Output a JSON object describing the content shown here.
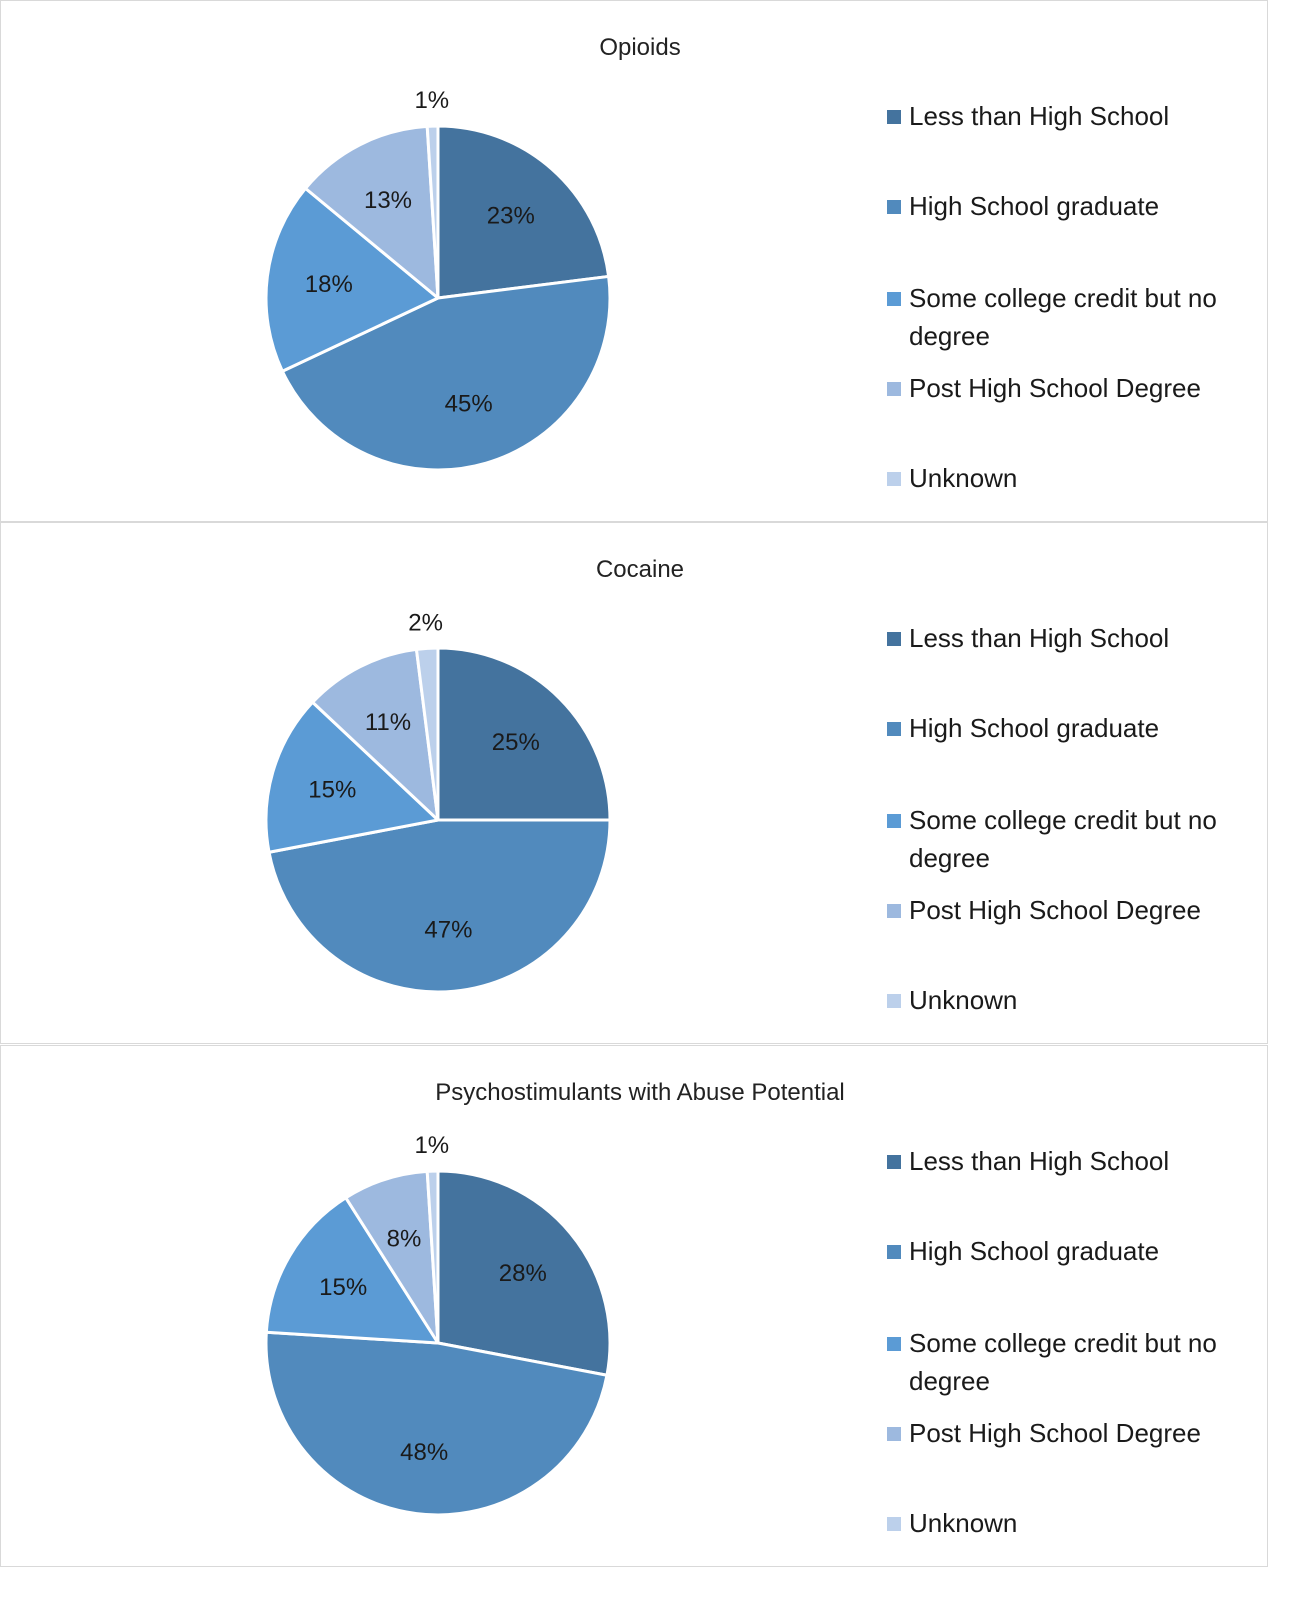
{
  "legend_labels": [
    "Less than High School",
    "High School graduate",
    "Some college credit but no degree",
    "Post High School Degree",
    "Unknown"
  ],
  "colors": [
    "#44739e",
    "#518abd",
    "#5b9bd5",
    "#9db9df",
    "#bcd0eb"
  ],
  "chart_data": [
    {
      "type": "pie",
      "title": "Opioids",
      "categories": [
        "Less than High School",
        "High School graduate",
        "Some college credit but no degree",
        "Post High School Degree",
        "Unknown"
      ],
      "values": [
        23,
        45,
        18,
        13,
        1
      ],
      "labels": [
        "23%",
        "45%",
        "18%",
        "13%",
        "1%"
      ],
      "legend": "right"
    },
    {
      "type": "pie",
      "title": "Cocaine",
      "categories": [
        "Less than High School",
        "High School graduate",
        "Some college credit but no degree",
        "Post High School Degree",
        "Unknown"
      ],
      "values": [
        25,
        47,
        15,
        11,
        2
      ],
      "labels": [
        "25%",
        "47%",
        "15%",
        "11%",
        "2%"
      ],
      "legend": "right"
    },
    {
      "type": "pie",
      "title": "Psychostimulants with Abuse Potential",
      "categories": [
        "Less than High School",
        "High School graduate",
        "Some college credit but no degree",
        "Post High School Degree",
        "Unknown"
      ],
      "values": [
        28,
        48,
        15,
        8,
        1
      ],
      "labels": [
        "28%",
        "48%",
        "15%",
        "8%",
        "1%"
      ],
      "legend": "right"
    }
  ]
}
